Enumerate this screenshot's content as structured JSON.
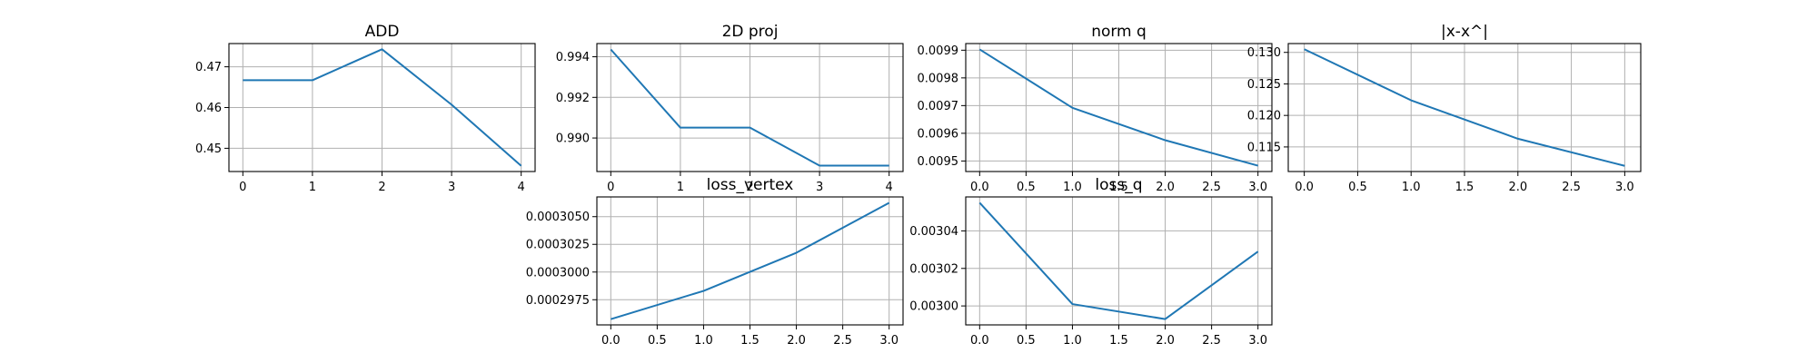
{
  "chart_data": [
    {
      "type": "line",
      "title": "ADD",
      "x": [
        0,
        1,
        2,
        3,
        4
      ],
      "series": [
        {
          "values": [
            0.4667,
            0.4667,
            0.4743,
            0.4607,
            0.4457
          ],
          "color": "#1f77b4"
        }
      ],
      "xlim": [
        -0.2,
        4.2
      ],
      "ylim": [
        0.4443,
        0.4757
      ],
      "xticks": [
        0,
        1,
        2,
        3,
        4
      ],
      "xticklabels": [
        "0",
        "1",
        "2",
        "3",
        "4"
      ],
      "yticks": [
        0.45,
        0.46,
        0.47
      ],
      "yticklabels": [
        "0.45",
        "0.46",
        "0.47"
      ],
      "grid": true
    },
    {
      "type": "line",
      "title": "2D proj",
      "x": [
        0,
        1,
        2,
        3,
        4
      ],
      "series": [
        {
          "values": [
            0.99436,
            0.99051,
            0.99051,
            0.98864,
            0.98864
          ],
          "color": "#1f77b4"
        }
      ],
      "xlim": [
        -0.2,
        4.2
      ],
      "ylim": [
        0.98835,
        0.99465
      ],
      "xticks": [
        0,
        1,
        2,
        3,
        4
      ],
      "xticklabels": [
        "0",
        "1",
        "2",
        "3",
        "4"
      ],
      "yticks": [
        0.99,
        0.992,
        0.994
      ],
      "yticklabels": [
        "0.990",
        "0.992",
        "0.994"
      ],
      "grid": true
    },
    {
      "type": "line",
      "title": "norm q",
      "x": [
        0,
        1,
        2,
        3
      ],
      "series": [
        {
          "values": [
            0.009903,
            0.009692,
            0.009575,
            0.009483
          ],
          "color": "#1f77b4"
        }
      ],
      "xlim": [
        -0.15,
        3.15
      ],
      "ylim": [
        0.009462,
        0.009924
      ],
      "xticks": [
        0,
        0.5,
        1,
        1.5,
        2,
        2.5,
        3
      ],
      "xticklabels": [
        "0.0",
        "0.5",
        "1.0",
        "1.5",
        "2.0",
        "2.5",
        "3.0"
      ],
      "yticks": [
        0.0095,
        0.0096,
        0.0097,
        0.0098,
        0.0099
      ],
      "yticklabels": [
        "0.0095",
        "0.0096",
        "0.0097",
        "0.0098",
        "0.0099"
      ],
      "grid": true
    },
    {
      "type": "line",
      "title": "|x-x^|",
      "x": [
        0,
        1,
        2,
        3
      ],
      "series": [
        {
          "values": [
            0.1305,
            0.1224,
            0.1163,
            0.112
          ],
          "color": "#1f77b4"
        }
      ],
      "xlim": [
        -0.15,
        3.15
      ],
      "ylim": [
        0.1111,
        0.1314
      ],
      "xticks": [
        0,
        0.5,
        1,
        1.5,
        2,
        2.5,
        3
      ],
      "xticklabels": [
        "0.0",
        "0.5",
        "1.0",
        "1.5",
        "2.0",
        "2.5",
        "3.0"
      ],
      "yticks": [
        0.115,
        0.12,
        0.125,
        0.13
      ],
      "yticklabels": [
        "0.115",
        "0.120",
        "0.125",
        "0.130"
      ],
      "grid": true
    },
    {
      "type": "line",
      "title": "loss_vertex",
      "x": [
        0,
        1,
        2,
        3
      ],
      "series": [
        {
          "values": [
            0.00029575,
            0.0002983,
            0.00030174,
            0.00030625
          ],
          "color": "#1f77b4"
        }
      ],
      "xlim": [
        -0.15,
        3.15
      ],
      "ylim": [
        0.00029523,
        0.00030678
      ],
      "xticks": [
        0,
        0.5,
        1,
        1.5,
        2,
        2.5,
        3
      ],
      "xticklabels": [
        "0.0",
        "0.5",
        "1.0",
        "1.5",
        "2.0",
        "2.5",
        "3.0"
      ],
      "yticks": [
        0.0002975,
        0.0003,
        0.0003025,
        0.000305
      ],
      "yticklabels": [
        "0.0002975",
        "0.0003000",
        "0.0003025",
        "0.0003050"
      ],
      "grid": true
    },
    {
      "type": "line",
      "title": "loss_q",
      "x": [
        0,
        1,
        2,
        3
      ],
      "series": [
        {
          "values": [
            0.003055,
            0.003001,
            0.002993,
            0.003029
          ],
          "color": "#1f77b4"
        }
      ],
      "xlim": [
        -0.15,
        3.15
      ],
      "ylim": [
        0.0029899,
        0.0030581
      ],
      "xticks": [
        0,
        0.5,
        1,
        1.5,
        2,
        2.5,
        3
      ],
      "xticklabels": [
        "0.0",
        "0.5",
        "1.0",
        "1.5",
        "2.0",
        "2.5",
        "3.0"
      ],
      "yticks": [
        0.003,
        0.00302,
        0.00304
      ],
      "yticklabels": [
        "0.00300",
        "0.00302",
        "0.00304"
      ],
      "grid": true
    }
  ]
}
